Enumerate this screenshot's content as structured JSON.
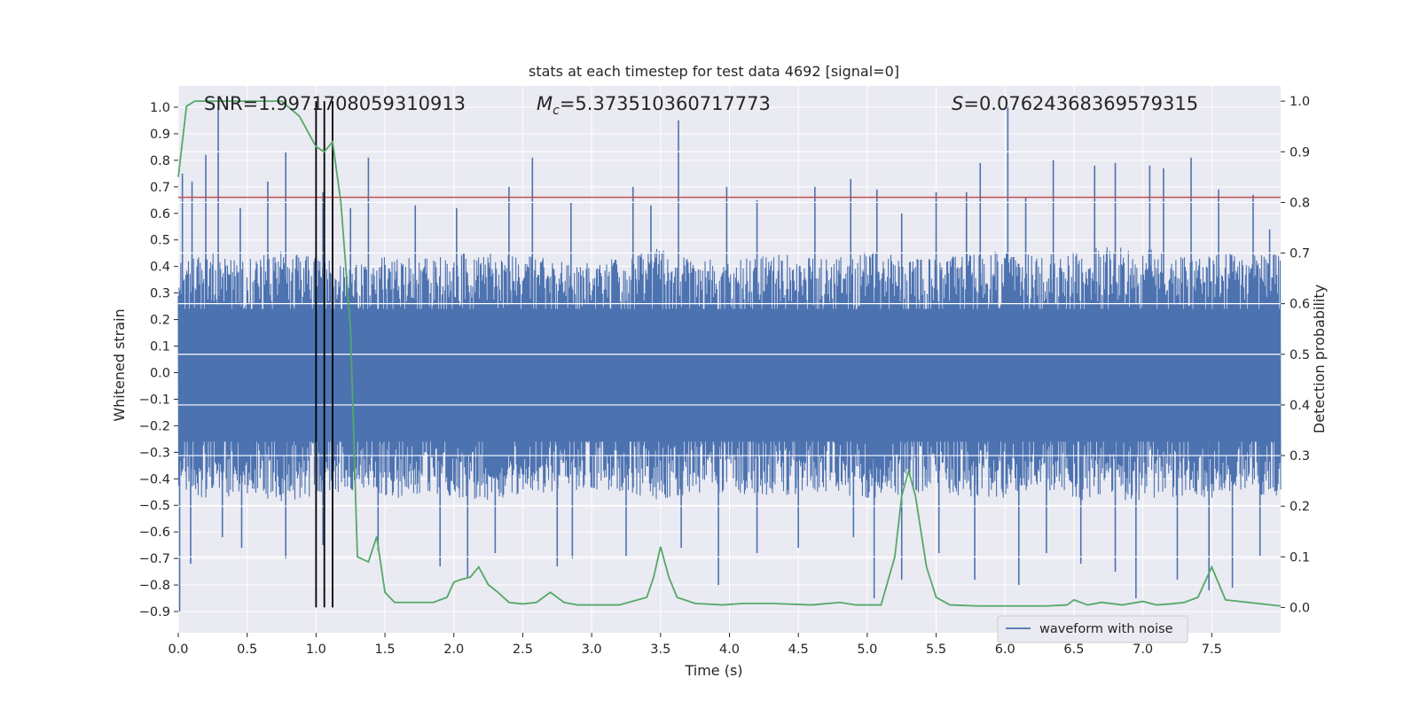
{
  "chart_data": {
    "type": "line",
    "title": "stats at each timestep for test data 4692 [signal=0]",
    "xlabel": "Time (s)",
    "ylabel_left": "Whitened strain",
    "ylabel_right": "Detection probability",
    "xlim": [
      0.0,
      8.0
    ],
    "ylim_left": [
      -0.98,
      1.08
    ],
    "ylim_right": [
      -0.05,
      1.03
    ],
    "x_ticks": [
      "0.0",
      "0.5",
      "1.0",
      "1.5",
      "2.0",
      "2.5",
      "3.0",
      "3.5",
      "4.0",
      "4.5",
      "5.0",
      "5.5",
      "6.0",
      "6.5",
      "7.0",
      "7.5"
    ],
    "y_ticks_left": [
      "1.0",
      "0.9",
      "0.8",
      "0.7",
      "0.6",
      "0.5",
      "0.4",
      "0.3",
      "0.2",
      "0.1",
      "0.0",
      "−0.1",
      "−0.2",
      "−0.3",
      "−0.4",
      "−0.5",
      "−0.6",
      "−0.7",
      "−0.8",
      "−0.9"
    ],
    "y_ticks_right": [
      "1.0",
      "0.9",
      "0.8",
      "0.7",
      "0.6",
      "0.5",
      "0.4",
      "0.3",
      "0.2",
      "0.1",
      "0.0"
    ],
    "grid": true,
    "legend": {
      "position": "bottom-right",
      "entries": [
        "waveform with noise"
      ]
    },
    "annotations": {
      "snr": "SNR=1.9971708059310913",
      "mc_symbol": "M",
      "mc_sub": "c",
      "mc_value": "=5.373510360717773",
      "s_symbol": "S",
      "s_value": "=0.07624368369579315"
    },
    "threshold": 0.81,
    "vlines": [
      1.0,
      1.06,
      1.12
    ],
    "noise_envelope": {
      "x": [
        0.0,
        0.25,
        0.5,
        0.75,
        1.0,
        1.25,
        1.5,
        1.75,
        2.0,
        2.25,
        2.5,
        2.75,
        3.0,
        3.25,
        3.5,
        3.75,
        4.0,
        4.25,
        4.5,
        4.75,
        5.0,
        5.25,
        5.5,
        5.75,
        6.0,
        6.25,
        6.5,
        6.75,
        7.0,
        7.25,
        7.5,
        7.75,
        8.0
      ],
      "upper": [
        0.42,
        0.45,
        0.43,
        0.47,
        0.44,
        0.4,
        0.44,
        0.43,
        0.45,
        0.46,
        0.44,
        0.43,
        0.41,
        0.44,
        0.47,
        0.43,
        0.42,
        0.45,
        0.44,
        0.43,
        0.46,
        0.44,
        0.43,
        0.45,
        0.46,
        0.44,
        0.46,
        0.48,
        0.47,
        0.45,
        0.46,
        0.44,
        0.45
      ],
      "lower": [
        -0.46,
        -0.48,
        -0.46,
        -0.49,
        -0.47,
        -0.44,
        -0.48,
        -0.46,
        -0.47,
        -0.49,
        -0.46,
        -0.45,
        -0.44,
        -0.46,
        -0.48,
        -0.46,
        -0.45,
        -0.47,
        -0.46,
        -0.45,
        -0.48,
        -0.46,
        -0.45,
        -0.47,
        -0.48,
        -0.46,
        -0.48,
        -0.49,
        -0.48,
        -0.47,
        -0.48,
        -0.46,
        -0.47
      ],
      "spikes_up": [
        [
          0.03,
          0.75
        ],
        [
          0.1,
          0.72
        ],
        [
          0.2,
          0.82
        ],
        [
          0.29,
          1.0
        ],
        [
          0.45,
          0.62
        ],
        [
          0.65,
          0.72
        ],
        [
          0.78,
          0.83
        ],
        [
          1.05,
          0.68
        ],
        [
          1.25,
          0.62
        ],
        [
          1.38,
          0.81
        ],
        [
          1.72,
          0.63
        ],
        [
          2.02,
          0.62
        ],
        [
          2.4,
          0.7
        ],
        [
          2.57,
          0.81
        ],
        [
          2.85,
          0.64
        ],
        [
          3.3,
          0.7
        ],
        [
          3.43,
          0.63
        ],
        [
          3.63,
          0.95
        ],
        [
          3.98,
          0.7
        ],
        [
          4.2,
          0.65
        ],
        [
          4.62,
          0.7
        ],
        [
          4.88,
          0.73
        ],
        [
          5.07,
          0.69
        ],
        [
          5.25,
          0.6
        ],
        [
          5.5,
          0.68
        ],
        [
          5.72,
          0.68
        ],
        [
          5.82,
          0.79
        ],
        [
          6.02,
          1.0
        ],
        [
          6.15,
          0.66
        ],
        [
          6.35,
          0.8
        ],
        [
          6.65,
          0.78
        ],
        [
          6.8,
          0.79
        ],
        [
          7.05,
          0.78
        ],
        [
          7.15,
          0.77
        ],
        [
          7.35,
          0.81
        ],
        [
          7.55,
          0.69
        ],
        [
          7.8,
          0.67
        ],
        [
          7.92,
          0.54
        ]
      ],
      "spikes_down": [
        [
          0.01,
          -0.9
        ],
        [
          0.09,
          -0.72
        ],
        [
          0.32,
          -0.62
        ],
        [
          0.46,
          -0.66
        ],
        [
          0.78,
          -0.7
        ],
        [
          1.05,
          -0.65
        ],
        [
          1.45,
          -0.67
        ],
        [
          1.9,
          -0.73
        ],
        [
          2.1,
          -0.77
        ],
        [
          2.3,
          -0.68
        ],
        [
          2.75,
          -0.73
        ],
        [
          2.86,
          -0.7
        ],
        [
          3.25,
          -0.69
        ],
        [
          3.65,
          -0.66
        ],
        [
          3.92,
          -0.8
        ],
        [
          4.2,
          -0.68
        ],
        [
          4.5,
          -0.66
        ],
        [
          4.9,
          -0.62
        ],
        [
          5.05,
          -0.85
        ],
        [
          5.25,
          -0.78
        ],
        [
          5.52,
          -0.68
        ],
        [
          5.78,
          -0.78
        ],
        [
          6.1,
          -0.8
        ],
        [
          6.3,
          -0.68
        ],
        [
          6.55,
          -0.72
        ],
        [
          6.8,
          -0.75
        ],
        [
          6.95,
          -0.85
        ],
        [
          7.25,
          -0.78
        ],
        [
          7.48,
          -0.82
        ],
        [
          7.65,
          -0.81
        ],
        [
          7.85,
          -0.69
        ]
      ]
    },
    "detection_probability": {
      "x": [
        0.0,
        0.06,
        0.12,
        0.25,
        0.5,
        0.75,
        0.88,
        1.0,
        1.06,
        1.12,
        1.18,
        1.25,
        1.3,
        1.38,
        1.44,
        1.5,
        1.57,
        1.7,
        1.85,
        1.95,
        2.0,
        2.05,
        2.12,
        2.18,
        2.25,
        2.32,
        2.4,
        2.5,
        2.6,
        2.7,
        2.8,
        2.9,
        3.0,
        3.2,
        3.4,
        3.45,
        3.5,
        3.56,
        3.62,
        3.75,
        3.95,
        4.1,
        4.3,
        4.6,
        4.8,
        4.92,
        5.1,
        5.2,
        5.25,
        5.3,
        5.35,
        5.43,
        5.5,
        5.6,
        5.8,
        6.0,
        6.3,
        6.45,
        6.5,
        6.6,
        6.7,
        6.85,
        7.0,
        7.1,
        7.2,
        7.3,
        7.4,
        7.5,
        7.6,
        8.0
      ],
      "y": [
        0.85,
        0.99,
        1.0,
        1.0,
        1.0,
        1.0,
        0.97,
        0.91,
        0.9,
        0.92,
        0.8,
        0.55,
        0.1,
        0.09,
        0.14,
        0.03,
        0.01,
        0.01,
        0.01,
        0.02,
        0.05,
        0.055,
        0.06,
        0.08,
        0.045,
        0.03,
        0.01,
        0.007,
        0.01,
        0.03,
        0.01,
        0.005,
        0.005,
        0.005,
        0.02,
        0.06,
        0.12,
        0.06,
        0.02,
        0.008,
        0.005,
        0.008,
        0.008,
        0.005,
        0.01,
        0.005,
        0.005,
        0.1,
        0.22,
        0.27,
        0.22,
        0.08,
        0.02,
        0.005,
        0.003,
        0.003,
        0.003,
        0.005,
        0.015,
        0.005,
        0.01,
        0.005,
        0.012,
        0.005,
        0.007,
        0.01,
        0.02,
        0.08,
        0.015,
        0.003
      ]
    },
    "colors": {
      "plot_bg": "#eaeaf2",
      "grid": "#ffffff",
      "waveform": "#4c72b0",
      "probability": "#55a868",
      "threshold": "#c44e52",
      "vline": "#000000"
    }
  }
}
